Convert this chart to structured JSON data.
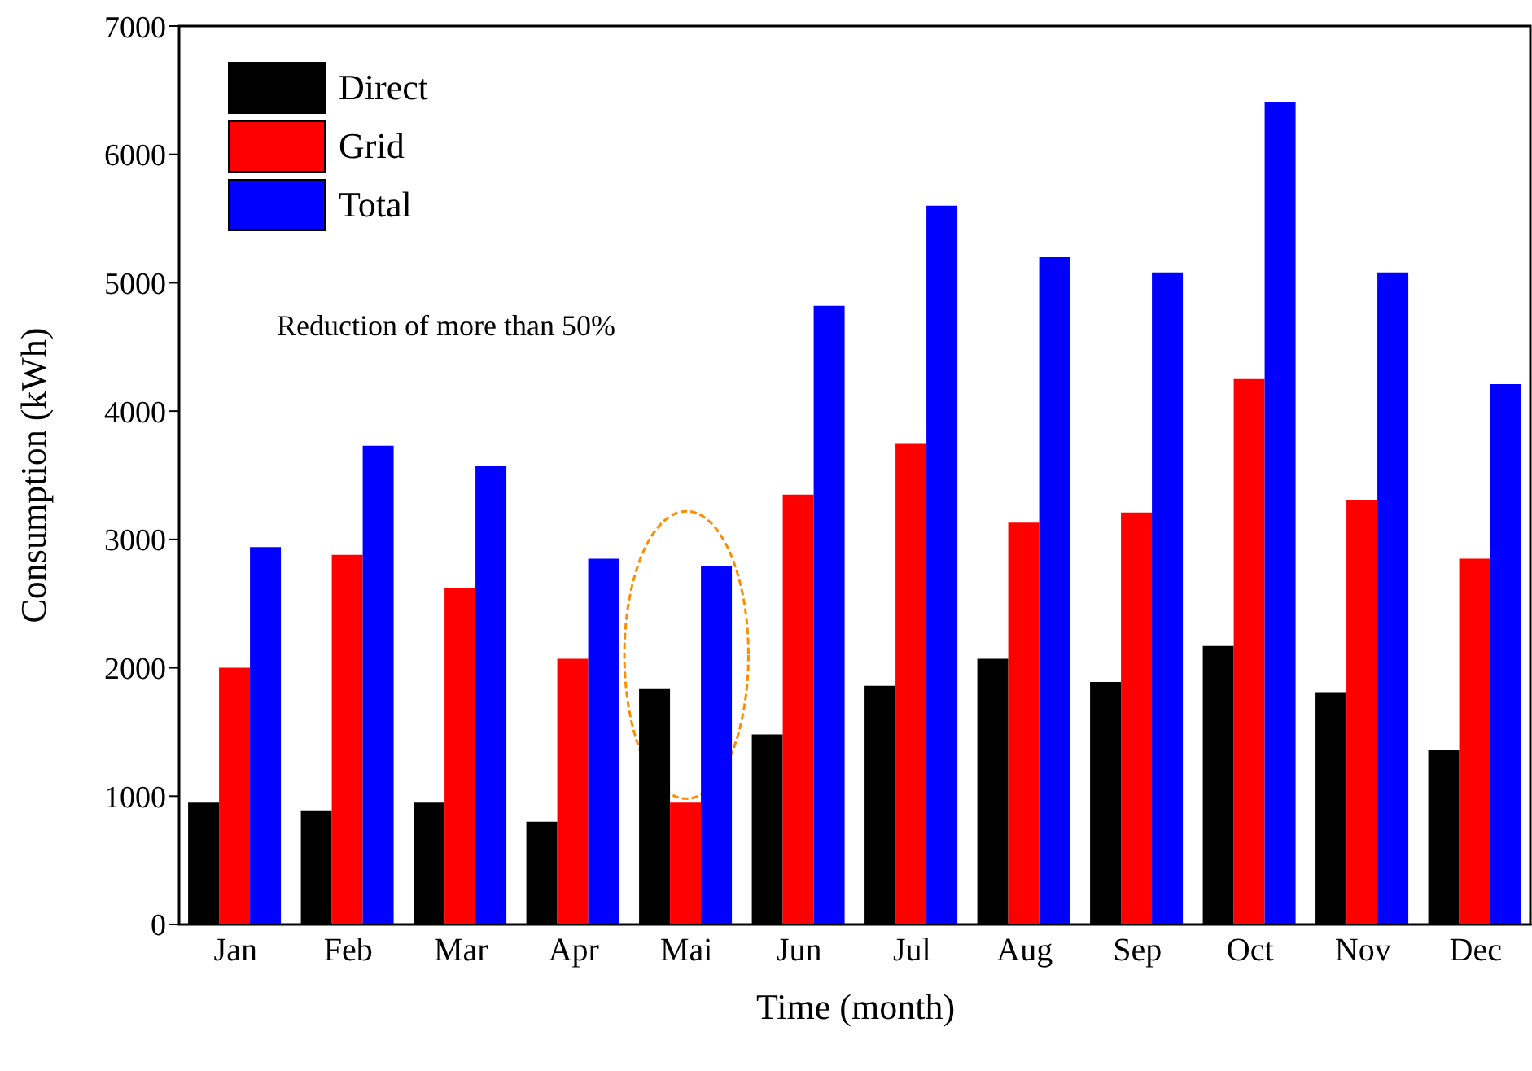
{
  "chart_data": {
    "type": "bar",
    "xlabel": "Time (month)",
    "ylabel": "Consumption (kWh)",
    "categories": [
      "Jan",
      "Feb",
      "Mar",
      "Apr",
      "Mai",
      "Jun",
      "Jul",
      "Aug",
      "Sep",
      "Oct",
      "Nov",
      "Dec"
    ],
    "series": [
      {
        "name": "Direct",
        "color": "#000000",
        "values": [
          950,
          890,
          950,
          800,
          1840,
          1480,
          1860,
          2070,
          1890,
          2170,
          1810,
          1360
        ]
      },
      {
        "name": "Grid",
        "color": "#ff0000",
        "values": [
          2000,
          2880,
          2620,
          2070,
          950,
          3350,
          3750,
          3130,
          3210,
          4250,
          3310,
          2850
        ]
      },
      {
        "name": "Total",
        "color": "#0000ff",
        "values": [
          2940,
          3730,
          3570,
          2850,
          2790,
          4820,
          5600,
          5200,
          5080,
          6410,
          5080,
          4210
        ]
      }
    ],
    "ylim": [
      0,
      7000
    ],
    "yticks": [
      0,
      1000,
      2000,
      3000,
      4000,
      5000,
      6000,
      7000
    ],
    "annotations": [
      "Reduction of more than 50%"
    ],
    "legend": "top left",
    "grid": false
  }
}
